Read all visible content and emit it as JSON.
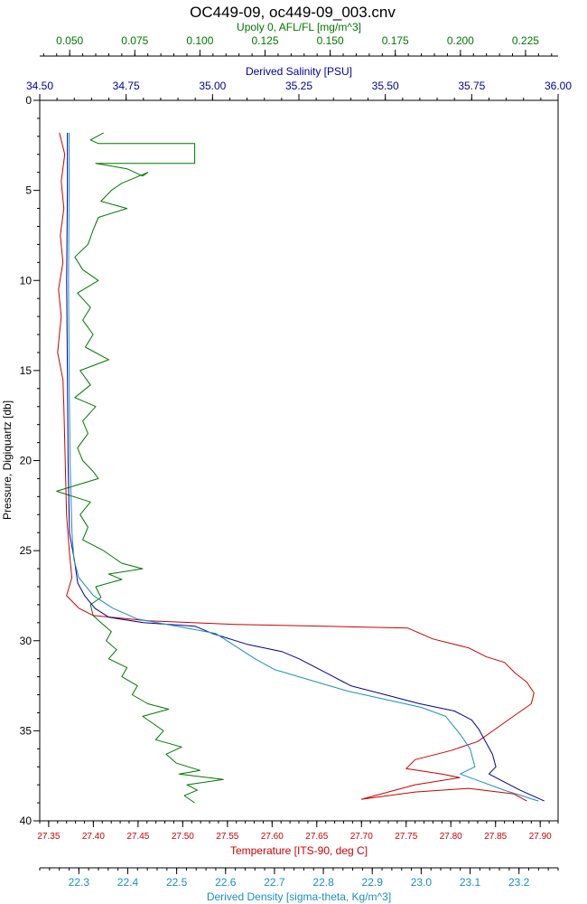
{
  "chart_data": {
    "type": "line",
    "title": "OC449-09, oc449-09_003.cnv",
    "y_axis": {
      "label": "Pressure, Digiquartz [db]",
      "range": [
        0,
        40
      ],
      "inverted": true,
      "ticks": [
        0,
        5,
        10,
        15,
        20,
        25,
        30,
        35,
        40
      ],
      "tick_labels": [
        "0",
        "5",
        "10",
        "15",
        "20",
        "25",
        "30",
        "35",
        "40"
      ]
    },
    "x_axes": [
      {
        "id": "fluor",
        "label": "Upoly 0, AFL/FL [mg/m^3]",
        "position": "top-outer",
        "color": "#007700",
        "range": [
          0.0385,
          0.2375
        ],
        "ticks": [
          0.05,
          0.075,
          0.1,
          0.125,
          0.15,
          0.175,
          0.2,
          0.225
        ],
        "tick_labels": [
          "0.050",
          "0.075",
          "0.100",
          "0.125",
          "0.150",
          "0.175",
          "0.200",
          "0.225"
        ]
      },
      {
        "id": "salinity",
        "label": "Derived Salinity [PSU]",
        "position": "top-inner",
        "color": "#000099",
        "range": [
          34.5,
          36.0
        ],
        "ticks": [
          34.5,
          34.75,
          35.0,
          35.25,
          35.5,
          35.75,
          36.0
        ],
        "tick_labels": [
          "34.50",
          "34.75",
          "35.00",
          "35.25",
          "35.50",
          "35.75",
          "36.00"
        ]
      },
      {
        "id": "temperature",
        "label": "Temperature [ITS-90, deg C]",
        "position": "bottom-inner",
        "color": "#cc0000",
        "range": [
          27.34,
          27.92
        ],
        "ticks": [
          27.35,
          27.4,
          27.45,
          27.5,
          27.55,
          27.6,
          27.65,
          27.7,
          27.75,
          27.8,
          27.85,
          27.9
        ],
        "tick_labels": [
          "27.35",
          "27.40",
          "27.45",
          "27.50",
          "27.55",
          "27.60",
          "27.65",
          "27.70",
          "27.75",
          "27.80",
          "27.85",
          "27.90"
        ]
      },
      {
        "id": "density",
        "label": "Derived Density [sigma-theta, Kg/m^3]",
        "position": "bottom-outer",
        "color": "#1a8fbf",
        "range": [
          22.22,
          23.28
        ],
        "ticks": [
          22.3,
          22.4,
          22.5,
          22.6,
          22.7,
          22.8,
          22.9,
          23.0,
          23.1,
          23.2
        ],
        "tick_labels": [
          "22.3",
          "22.4",
          "22.5",
          "22.6",
          "22.7",
          "22.8",
          "22.9",
          "23.0",
          "23.1",
          "23.2"
        ]
      }
    ],
    "series": [
      {
        "axis": "fluor",
        "color": "#007700",
        "points": [
          [
            0.063,
            1.8
          ],
          [
            0.058,
            2.2
          ],
          [
            0.061,
            2.4
          ],
          [
            0.098,
            2.4
          ],
          [
            0.098,
            3.5
          ],
          [
            0.06,
            3.5
          ],
          [
            0.072,
            3.8
          ],
          [
            0.078,
            4.2
          ],
          [
            0.08,
            4.0
          ],
          [
            0.07,
            4.6
          ],
          [
            0.066,
            5.0
          ],
          [
            0.062,
            5.6
          ],
          [
            0.072,
            6.0
          ],
          [
            0.061,
            6.5
          ],
          [
            0.059,
            7.2
          ],
          [
            0.057,
            8.0
          ],
          [
            0.052,
            8.7
          ],
          [
            0.055,
            9.4
          ],
          [
            0.061,
            10.0
          ],
          [
            0.053,
            10.7
          ],
          [
            0.058,
            11.5
          ],
          [
            0.055,
            12.2
          ],
          [
            0.059,
            13.0
          ],
          [
            0.056,
            13.7
          ],
          [
            0.065,
            14.4
          ],
          [
            0.054,
            15.0
          ],
          [
            0.058,
            15.8
          ],
          [
            0.052,
            16.5
          ],
          [
            0.06,
            17.0
          ],
          [
            0.055,
            17.8
          ],
          [
            0.057,
            18.5
          ],
          [
            0.053,
            19.3
          ],
          [
            0.055,
            20.0
          ],
          [
            0.059,
            20.6
          ],
          [
            0.061,
            21.0
          ],
          [
            0.045,
            21.7
          ],
          [
            0.058,
            22.3
          ],
          [
            0.054,
            23.0
          ],
          [
            0.057,
            23.7
          ],
          [
            0.055,
            24.4
          ],
          [
            0.063,
            25.0
          ],
          [
            0.07,
            25.7
          ],
          [
            0.078,
            26.0
          ],
          [
            0.065,
            26.3
          ],
          [
            0.07,
            26.6
          ],
          [
            0.06,
            27.0
          ],
          [
            0.062,
            27.6
          ],
          [
            0.058,
            28.0
          ],
          [
            0.059,
            28.6
          ],
          [
            0.062,
            29.0
          ],
          [
            0.066,
            29.5
          ],
          [
            0.064,
            30.0
          ],
          [
            0.068,
            30.5
          ],
          [
            0.065,
            31.0
          ],
          [
            0.072,
            31.5
          ],
          [
            0.07,
            32.0
          ],
          [
            0.076,
            32.5
          ],
          [
            0.074,
            33.0
          ],
          [
            0.08,
            33.5
          ],
          [
            0.088,
            33.8
          ],
          [
            0.078,
            34.2
          ],
          [
            0.082,
            34.6
          ],
          [
            0.086,
            35.0
          ],
          [
            0.083,
            35.5
          ],
          [
            0.093,
            35.9
          ],
          [
            0.087,
            36.3
          ],
          [
            0.091,
            36.8
          ],
          [
            0.1,
            37.2
          ],
          [
            0.092,
            37.4
          ],
          [
            0.109,
            37.7
          ],
          [
            0.095,
            38.0
          ],
          [
            0.099,
            38.3
          ],
          [
            0.094,
            38.6
          ],
          [
            0.098,
            39.0
          ]
        ]
      },
      {
        "axis": "temperature",
        "color": "#cc0000",
        "points": [
          [
            27.362,
            1.8
          ],
          [
            27.368,
            3.0
          ],
          [
            27.364,
            4.5
          ],
          [
            27.367,
            6.0
          ],
          [
            27.363,
            7.5
          ],
          [
            27.366,
            9.0
          ],
          [
            27.361,
            10.5
          ],
          [
            27.364,
            12.0
          ],
          [
            27.36,
            14.0
          ],
          [
            27.366,
            15.5
          ],
          [
            27.367,
            17.0
          ],
          [
            27.368,
            19.0
          ],
          [
            27.369,
            21.0
          ],
          [
            27.37,
            23.0
          ],
          [
            27.373,
            25.0
          ],
          [
            27.376,
            26.5
          ],
          [
            27.37,
            27.5
          ],
          [
            27.384,
            28.2
          ],
          [
            27.4,
            28.6
          ],
          [
            27.462,
            28.9
          ],
          [
            27.56,
            29.1
          ],
          [
            27.66,
            29.2
          ],
          [
            27.752,
            29.3
          ],
          [
            27.78,
            29.9
          ],
          [
            27.82,
            30.4
          ],
          [
            27.84,
            30.9
          ],
          [
            27.86,
            31.2
          ],
          [
            27.872,
            31.8
          ],
          [
            27.885,
            32.3
          ],
          [
            27.893,
            32.9
          ],
          [
            27.89,
            33.5
          ],
          [
            27.87,
            34.2
          ],
          [
            27.85,
            34.9
          ],
          [
            27.83,
            35.6
          ],
          [
            27.8,
            36.1
          ],
          [
            27.76,
            36.6
          ],
          [
            27.75,
            37.1
          ],
          [
            27.79,
            37.4
          ],
          [
            27.81,
            37.6
          ],
          [
            27.76,
            38.0
          ],
          [
            27.73,
            38.4
          ],
          [
            27.7,
            38.8
          ],
          [
            27.76,
            38.4
          ],
          [
            27.82,
            38.2
          ],
          [
            27.87,
            38.5
          ],
          [
            27.885,
            38.9
          ]
        ]
      },
      {
        "axis": "salinity",
        "color": "#000099",
        "points": [
          [
            34.58,
            1.8
          ],
          [
            34.58,
            5.0
          ],
          [
            34.578,
            10.0
          ],
          [
            34.58,
            15.0
          ],
          [
            34.582,
            20.0
          ],
          [
            34.586,
            24.0
          ],
          [
            34.6,
            25.5
          ],
          [
            34.61,
            26.8
          ],
          [
            34.63,
            27.5
          ],
          [
            34.66,
            28.2
          ],
          [
            34.7,
            28.7
          ],
          [
            34.8,
            29.0
          ],
          [
            34.95,
            29.2
          ],
          [
            35.0,
            29.6
          ],
          [
            35.1,
            30.2
          ],
          [
            35.2,
            30.6
          ],
          [
            35.25,
            31.0
          ],
          [
            35.3,
            31.5
          ],
          [
            35.35,
            32.0
          ],
          [
            35.4,
            32.5
          ],
          [
            35.5,
            33.0
          ],
          [
            35.6,
            33.5
          ],
          [
            35.7,
            33.9
          ],
          [
            35.75,
            34.4
          ],
          [
            35.77,
            34.9
          ],
          [
            35.79,
            35.6
          ],
          [
            35.81,
            36.3
          ],
          [
            35.82,
            37.0
          ],
          [
            35.8,
            37.4
          ],
          [
            35.84,
            37.8
          ],
          [
            35.89,
            38.3
          ],
          [
            35.96,
            38.9
          ]
        ]
      },
      {
        "axis": "density",
        "color": "#1a8fbf",
        "points": [
          [
            22.28,
            1.8
          ],
          [
            22.28,
            5.0
          ],
          [
            22.279,
            10.0
          ],
          [
            22.28,
            15.0
          ],
          [
            22.282,
            20.0
          ],
          [
            22.286,
            24.0
          ],
          [
            22.29,
            25.5
          ],
          [
            22.3,
            26.5
          ],
          [
            22.33,
            27.5
          ],
          [
            22.37,
            28.2
          ],
          [
            22.42,
            28.8
          ],
          [
            22.5,
            29.2
          ],
          [
            22.58,
            29.6
          ],
          [
            22.62,
            30.3
          ],
          [
            22.66,
            31.0
          ],
          [
            22.7,
            31.6
          ],
          [
            22.75,
            32.0
          ],
          [
            22.8,
            32.4
          ],
          [
            22.85,
            32.8
          ],
          [
            22.9,
            33.1
          ],
          [
            22.95,
            33.4
          ],
          [
            23.0,
            33.7
          ],
          [
            23.05,
            34.2
          ],
          [
            23.08,
            35.2
          ],
          [
            23.1,
            36.0
          ],
          [
            23.11,
            37.0
          ],
          [
            23.08,
            37.4
          ],
          [
            23.12,
            37.8
          ],
          [
            23.17,
            38.3
          ],
          [
            23.24,
            38.9
          ]
        ]
      }
    ]
  }
}
